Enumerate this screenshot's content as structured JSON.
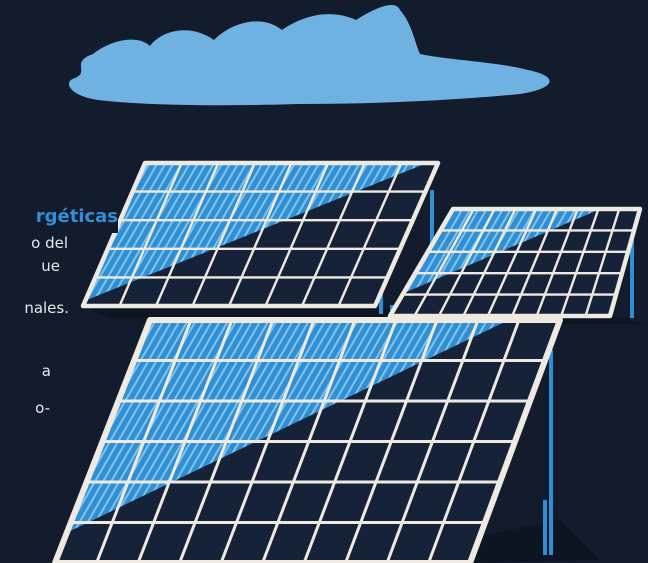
{
  "heading": "rgéticas",
  "body_lines": [
    "o del",
    "ue",
    "nales.",
    "a",
    "o-"
  ],
  "colors": {
    "background": "#131c2d",
    "cloud": "#6fb2e2",
    "cell_dark": "#162238",
    "cell_blue": "#2f8fd2",
    "frame": "#eeeae2",
    "post": "#2e8fd6",
    "heading": "#2e8fd6",
    "text": "#e6e9ee"
  },
  "illustration": {
    "cloud": "cloud-icon",
    "panels": [
      {
        "name": "solar-panel-back-left",
        "cols": 8,
        "rows": 5,
        "blue_fraction": 0.55
      },
      {
        "name": "solar-panel-back-right",
        "cols": 9,
        "rows": 5,
        "blue_fraction": 0.45
      },
      {
        "name": "solar-panel-front",
        "cols": 10,
        "rows": 6,
        "blue_fraction": 0.5
      }
    ]
  }
}
